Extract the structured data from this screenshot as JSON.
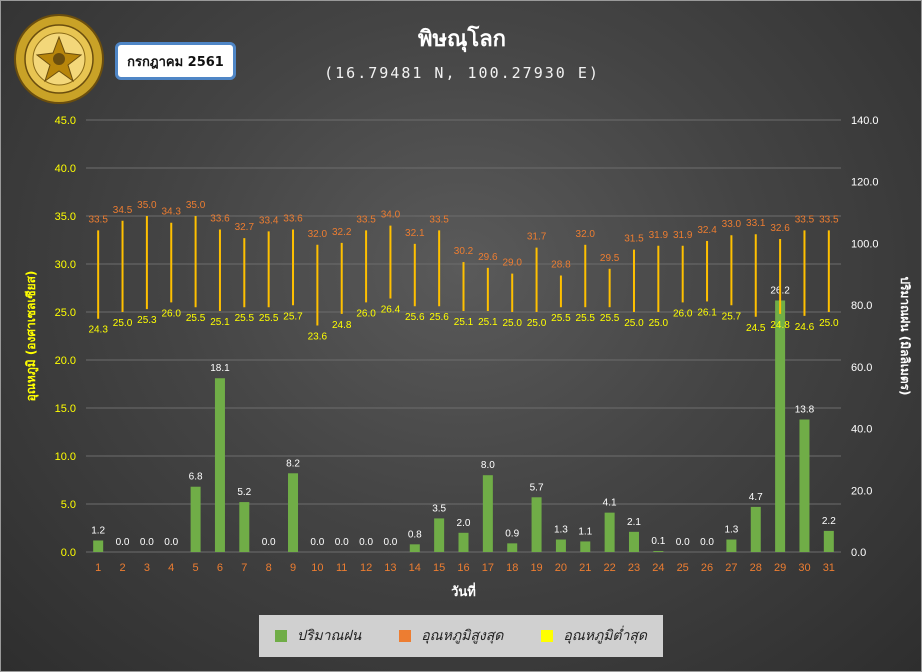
{
  "header": {
    "title": "พิษณุโลก",
    "subtitle": "(16.79481 N, 100.27930 E)",
    "month_label": "กรกฎาคม 2561"
  },
  "logo": {
    "icon": "meteorological-department-seal-icon",
    "text": "กรมอุตุนิยมวิทยา METEOROLOGICAL DEPARTMENT"
  },
  "colors": {
    "rain": "#70ad47",
    "tmax": "#ed7d31",
    "tmin": "#ffff00",
    "tmax_label": "#ed7d31",
    "tmin_label": "#ffff00",
    "bar_line": "#ffc000",
    "xtick": "#ed7d31"
  },
  "legend": [
    {
      "key": "rain",
      "label": "ปริมาณฝน"
    },
    {
      "key": "tmax",
      "label": "อุณหภูมิสูงสุด"
    },
    {
      "key": "tmin",
      "label": "อุณหภูมิต่ำสุด"
    }
  ],
  "chart_data": {
    "type": "bar",
    "xlabel": "วันที่",
    "ylabel_left": "อุณหภูมิ (องศาเซลเซียส)",
    "ylabel_right": "ปริมาณฝน (มิลลิเมตร)",
    "ylim_left": [
      0,
      45
    ],
    "ylim_right": [
      0,
      140
    ],
    "yticks_left": [
      "0.0",
      "5.0",
      "10.0",
      "15.0",
      "20.0",
      "25.0",
      "30.0",
      "35.0",
      "40.0",
      "45.0"
    ],
    "yticks_right": [
      "0.0",
      "20.0",
      "40.0",
      "60.0",
      "80.0",
      "100.0",
      "120.0",
      "140.0"
    ],
    "grid": true,
    "legend_position": "bottom",
    "categories": [
      "1",
      "2",
      "3",
      "4",
      "5",
      "6",
      "7",
      "8",
      "9",
      "10",
      "11",
      "12",
      "13",
      "14",
      "15",
      "16",
      "17",
      "18",
      "19",
      "20",
      "21",
      "22",
      "23",
      "24",
      "25",
      "26",
      "27",
      "28",
      "29",
      "30",
      "31"
    ],
    "series": [
      {
        "name": "ปริมาณฝน",
        "axis": "left",
        "values": [
          1.2,
          0.0,
          0.0,
          0.0,
          6.8,
          18.1,
          5.2,
          0.0,
          8.2,
          0.0,
          0.0,
          0.0,
          0.0,
          0.8,
          3.5,
          2.0,
          8.0,
          0.9,
          5.7,
          1.3,
          1.1,
          4.1,
          2.1,
          0.1,
          0.0,
          0.0,
          1.3,
          4.7,
          26.2,
          13.8,
          2.2
        ]
      },
      {
        "name": "อุณหภูมิสูงสุด",
        "axis": "left",
        "values": [
          33.5,
          34.5,
          35.0,
          34.3,
          35.0,
          33.6,
          32.7,
          33.4,
          33.6,
          32.0,
          32.2,
          33.5,
          34.0,
          32.1,
          33.5,
          30.2,
          29.6,
          29.0,
          31.7,
          28.8,
          32.0,
          29.5,
          31.5,
          31.9,
          31.9,
          32.4,
          33.0,
          33.1,
          32.6,
          33.5,
          33.5
        ]
      },
      {
        "name": "อุณหภูมิต่ำสุด",
        "axis": "left",
        "values": [
          24.3,
          25.0,
          25.3,
          26.0,
          25.5,
          25.1,
          25.5,
          25.5,
          25.7,
          23.6,
          24.8,
          26.0,
          26.4,
          25.6,
          25.6,
          25.1,
          25.1,
          25.0,
          25.0,
          25.5,
          25.5,
          25.5,
          25.0,
          25.0,
          26.0,
          26.1,
          25.7,
          24.5,
          24.8,
          24.6,
          25.0
        ]
      }
    ]
  }
}
